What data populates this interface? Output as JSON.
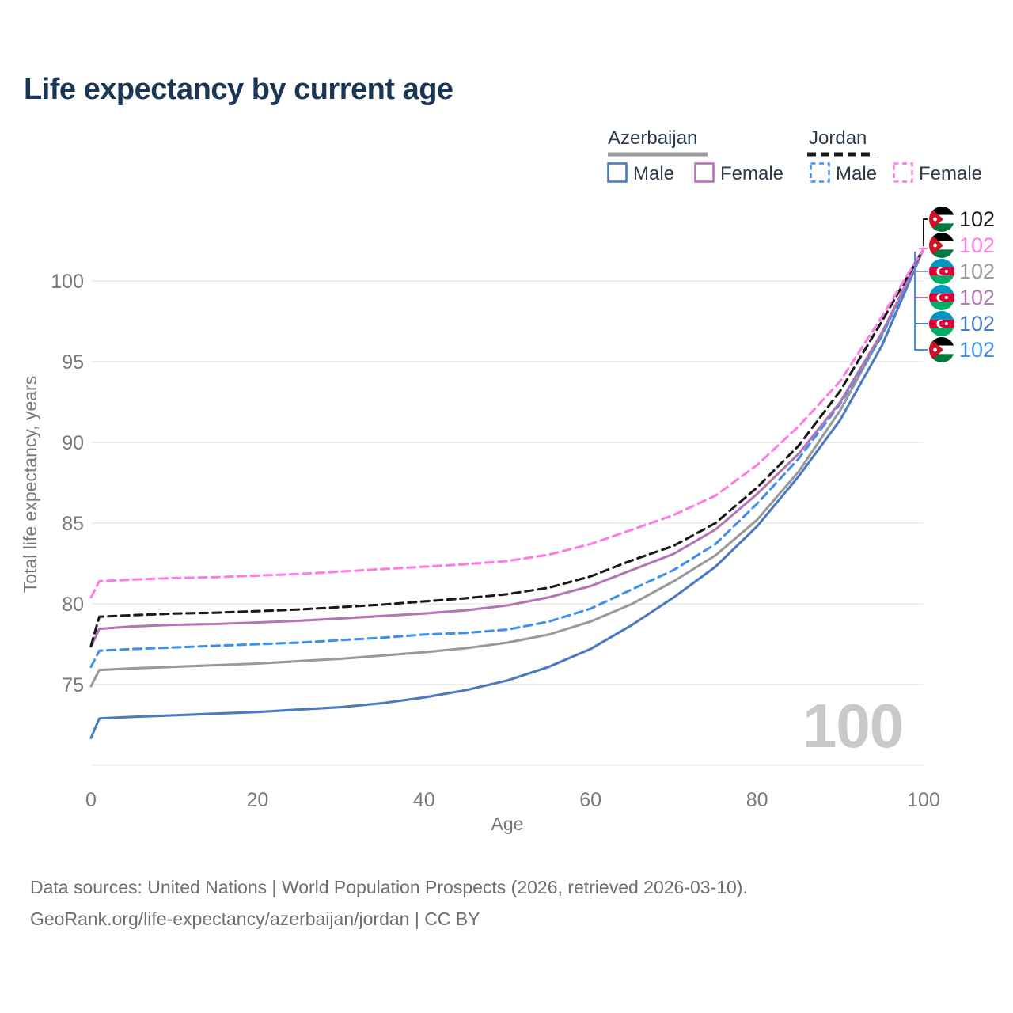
{
  "title": "Life expectancy by current age",
  "watermark": "100",
  "legend": {
    "groups": [
      {
        "label": "Azerbaijan",
        "line_style": "solid",
        "items": [
          {
            "label": "Male"
          },
          {
            "label": "Female"
          }
        ]
      },
      {
        "label": "Jordan",
        "line_style": "dashed",
        "items": [
          {
            "label": "Male"
          },
          {
            "label": "Female"
          }
        ]
      }
    ]
  },
  "footer": {
    "line1": "Data sources: United Nations | World Population Prospects (2026, retrieved 2026-03-10).",
    "line2": "GeoRank.org/life-expectancy/azerbaijan/jordan | CC BY"
  },
  "chart_data": {
    "type": "line",
    "title": "Life expectancy by current age",
    "xlabel": "Age",
    "ylabel": "Total life expectancy, years",
    "xticks": [
      0,
      20,
      40,
      60,
      80,
      100
    ],
    "yticks": [
      75,
      80,
      85,
      90,
      95,
      100
    ],
    "xlim": [
      0,
      100
    ],
    "ylim": [
      70,
      103
    ],
    "grid": "horizontal",
    "legend_position": "top-right",
    "x": [
      0,
      1,
      5,
      10,
      15,
      20,
      25,
      30,
      35,
      40,
      45,
      50,
      55,
      60,
      65,
      70,
      75,
      80,
      85,
      90,
      95,
      100
    ],
    "series": [
      {
        "name": "Jordan — Total",
        "country": "Jordan",
        "sex": "Total",
        "color": "#1a1a1a",
        "dashed": true,
        "flag": "jordan",
        "end_label": "102",
        "values": [
          77.4,
          79.2,
          79.3,
          79.4,
          79.45,
          79.55,
          79.65,
          79.8,
          79.95,
          80.15,
          80.35,
          80.6,
          81.0,
          81.7,
          82.7,
          83.6,
          85.0,
          87.2,
          89.8,
          93.2,
          97.5,
          102
        ]
      },
      {
        "name": "Jordan — Female",
        "country": "Jordan",
        "sex": "Female",
        "color": "#ff7ce4",
        "dashed": true,
        "flag": "jordan",
        "end_label": "102",
        "values": [
          80.4,
          81.4,
          81.5,
          81.6,
          81.65,
          81.75,
          81.85,
          82.0,
          82.15,
          82.3,
          82.45,
          82.65,
          83.05,
          83.7,
          84.6,
          85.5,
          86.7,
          88.6,
          91.0,
          93.8,
          97.8,
          102
        ]
      },
      {
        "name": "Azerbaijan — Total",
        "country": "Azerbaijan",
        "sex": "Total",
        "color": "#9a9a9a",
        "dashed": false,
        "flag": "azerbaijan",
        "end_label": "102",
        "values": [
          74.9,
          75.9,
          76.0,
          76.1,
          76.2,
          76.3,
          76.45,
          76.6,
          76.8,
          77.0,
          77.25,
          77.6,
          78.1,
          78.9,
          80.0,
          81.4,
          83.0,
          85.2,
          88.2,
          92.0,
          96.7,
          102
        ]
      },
      {
        "name": "Azerbaijan — Female",
        "country": "Azerbaijan",
        "sex": "Female",
        "color": "#b277b2",
        "dashed": false,
        "flag": "azerbaijan",
        "end_label": "102",
        "values": [
          77.35,
          78.45,
          78.6,
          78.7,
          78.75,
          78.85,
          78.95,
          79.1,
          79.25,
          79.4,
          79.6,
          79.9,
          80.4,
          81.1,
          82.1,
          83.1,
          84.6,
          86.8,
          89.3,
          92.5,
          96.8,
          102
        ]
      },
      {
        "name": "Azerbaijan — Male",
        "country": "Azerbaijan",
        "sex": "Male",
        "color": "#4a7ac1",
        "dashed": false,
        "flag": "azerbaijan",
        "end_label": "102",
        "values": [
          71.7,
          72.9,
          73.0,
          73.1,
          73.2,
          73.3,
          73.45,
          73.6,
          73.85,
          74.2,
          74.65,
          75.25,
          76.1,
          77.2,
          78.7,
          80.4,
          82.3,
          84.8,
          87.9,
          91.4,
          96.0,
          102
        ]
      },
      {
        "name": "Jordan — Male",
        "country": "Jordan",
        "sex": "Male",
        "color": "#4190f0",
        "dashed": true,
        "flag": "jordan",
        "end_label": "102",
        "values": [
          76.1,
          77.1,
          77.2,
          77.3,
          77.4,
          77.5,
          77.6,
          77.75,
          77.9,
          78.1,
          78.2,
          78.4,
          78.9,
          79.7,
          80.9,
          82.1,
          83.7,
          86.2,
          89.0,
          92.4,
          96.6,
          102
        ]
      }
    ]
  }
}
